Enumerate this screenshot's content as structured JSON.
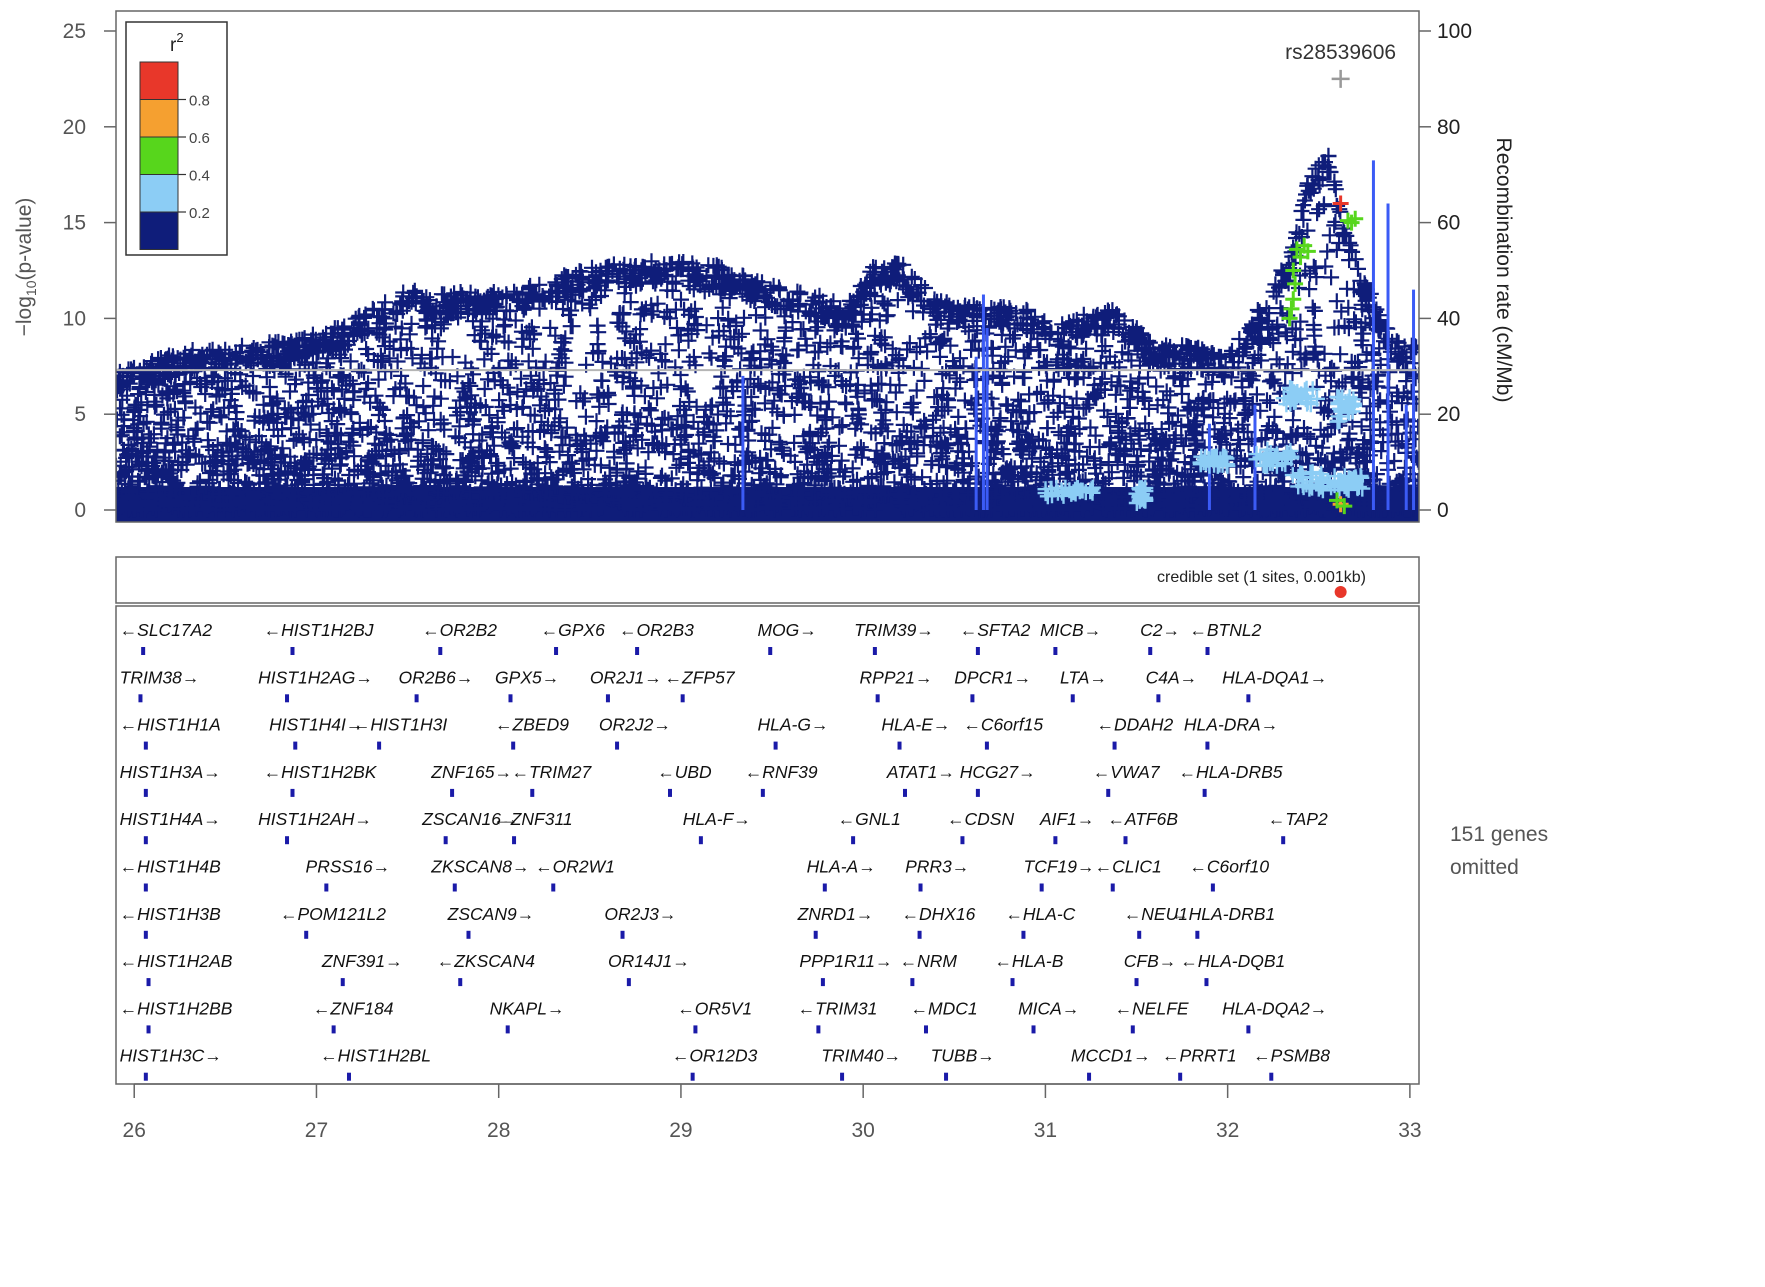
{
  "chart_data": {
    "type": "scatter",
    "plot_kind": "regional association plot",
    "ylabel": "-log10(p-value)",
    "y2label": "Recombination rate (cM/Mb)",
    "xlim": [
      25.9,
      33.05
    ],
    "ylim": [
      0,
      25
    ],
    "y2lim": [
      0,
      100
    ],
    "x_ticks": [
      26,
      27,
      28,
      29,
      30,
      31,
      32,
      33
    ],
    "y_ticks": [
      0,
      5,
      10,
      15,
      20,
      25
    ],
    "y2_ticks": [
      0,
      20,
      40,
      60,
      80,
      100
    ],
    "significance_line": 7.3,
    "legend": {
      "title": "r",
      "title_sup": "2",
      "placement": "top-left",
      "labels": [
        "0.8",
        "0.6",
        "0.4",
        "0.2"
      ],
      "colors": [
        "#e8372a",
        "#f5a030",
        "#57d61c",
        "#8ccdf5",
        "#0f1d7a"
      ]
    },
    "lead_snp": {
      "label": "rs28539606",
      "x": 32.62,
      "y": 22.5,
      "color": "#999999"
    },
    "profile": [
      [
        25.9,
        7.2
      ],
      [
        26.1,
        7.8
      ],
      [
        26.3,
        8.4
      ],
      [
        26.6,
        8.6
      ],
      [
        26.9,
        9.0
      ],
      [
        27.1,
        9.5
      ],
      [
        27.3,
        10.5
      ],
      [
        27.5,
        11.5
      ],
      [
        27.7,
        11.4
      ],
      [
        28.0,
        11.4
      ],
      [
        28.2,
        11.8
      ],
      [
        28.4,
        12.4
      ],
      [
        28.6,
        12.9
      ],
      [
        28.8,
        13.0
      ],
      [
        29.0,
        13.0
      ],
      [
        29.2,
        12.8
      ],
      [
        29.4,
        12.0
      ],
      [
        29.6,
        11.5
      ],
      [
        29.8,
        11.2
      ],
      [
        29.9,
        10.6
      ],
      [
        30.05,
        12.8
      ],
      [
        30.2,
        13.0
      ],
      [
        30.35,
        11.5
      ],
      [
        30.5,
        10.8
      ],
      [
        30.7,
        10.7
      ],
      [
        30.9,
        10.5
      ],
      [
        31.05,
        9.5
      ],
      [
        31.2,
        10.2
      ],
      [
        31.4,
        10.5
      ],
      [
        31.6,
        8.6
      ],
      [
        31.8,
        8.6
      ],
      [
        32.0,
        8.0
      ],
      [
        32.2,
        11.0
      ],
      [
        32.35,
        13.5
      ],
      [
        32.45,
        17.5
      ],
      [
        32.55,
        18.8
      ],
      [
        32.65,
        14.5
      ],
      [
        32.75,
        12.0
      ],
      [
        32.9,
        9.0
      ],
      [
        33.05,
        8.5
      ]
    ],
    "high_r2_points": [
      {
        "x": 32.62,
        "y": 16.0,
        "r2_bin": "0.8"
      },
      {
        "x": 32.62,
        "y": 0.3,
        "r2_bin": "0.6"
      },
      {
        "x": 32.38,
        "y": 13.6,
        "r2_bin": "0.4"
      },
      {
        "x": 32.4,
        "y": 13.2,
        "r2_bin": "0.4"
      },
      {
        "x": 32.42,
        "y": 13.8,
        "r2_bin": "0.4"
      },
      {
        "x": 32.44,
        "y": 13.5,
        "r2_bin": "0.4"
      },
      {
        "x": 32.36,
        "y": 12.5,
        "r2_bin": "0.4"
      },
      {
        "x": 32.37,
        "y": 11.8,
        "r2_bin": "0.4"
      },
      {
        "x": 32.36,
        "y": 11.0,
        "r2_bin": "0.4"
      },
      {
        "x": 32.35,
        "y": 10.5,
        "r2_bin": "0.4"
      },
      {
        "x": 32.34,
        "y": 10.0,
        "r2_bin": "0.4"
      },
      {
        "x": 32.66,
        "y": 15.1,
        "r2_bin": "0.4"
      },
      {
        "x": 32.68,
        "y": 15.0,
        "r2_bin": "0.4"
      },
      {
        "x": 32.7,
        "y": 15.2,
        "r2_bin": "0.4"
      },
      {
        "x": 32.6,
        "y": 0.5,
        "r2_bin": "0.4"
      },
      {
        "x": 32.64,
        "y": 0.2,
        "r2_bin": "0.4"
      }
    ],
    "light_blue_regions": [
      {
        "x_from": 31.0,
        "x_to": 31.3,
        "y_from": 0.7,
        "y_to": 1.2
      },
      {
        "x_from": 31.5,
        "x_to": 31.55,
        "y_from": 0.3,
        "y_to": 1.2
      },
      {
        "x_from": 31.85,
        "x_to": 32.0,
        "y_from": 2.3,
        "y_to": 2.8
      },
      {
        "x_from": 32.15,
        "x_to": 32.35,
        "y_from": 2.3,
        "y_to": 3.2
      },
      {
        "x_from": 32.35,
        "x_to": 32.55,
        "y_from": 1.0,
        "y_to": 2.0
      },
      {
        "x_from": 32.55,
        "x_to": 32.75,
        "y_from": 1.0,
        "y_to": 1.8
      },
      {
        "x_from": 32.6,
        "x_to": 32.7,
        "y_from": 4.5,
        "y_to": 6.0
      },
      {
        "x_from": 32.3,
        "x_to": 32.5,
        "y_from": 5.5,
        "y_to": 6.5
      }
    ],
    "recombination_spikes": [
      {
        "x": 29.34,
        "rate": 28
      },
      {
        "x": 30.62,
        "rate": 32
      },
      {
        "x": 30.68,
        "rate": 38
      },
      {
        "x": 30.66,
        "rate": 45
      },
      {
        "x": 32.8,
        "rate": 73
      },
      {
        "x": 32.88,
        "rate": 64
      },
      {
        "x": 33.02,
        "rate": 46
      },
      {
        "x": 32.98,
        "rate": 22
      },
      {
        "x": 32.15,
        "rate": 22
      },
      {
        "x": 31.9,
        "rate": 18
      }
    ],
    "credible_set": {
      "label": "credible set (1 sites, 0.001kb)",
      "x": 32.62,
      "color": "#e8372a"
    },
    "genes_omitted_line1": "151 genes",
    "genes_omitted_line2": "omitted",
    "gene_rows": [
      [
        [
          "SLC17A2",
          "l",
          25.92
        ],
        [
          "HIST1H2BJ",
          "l",
          26.71
        ],
        [
          "OR2B2",
          "l",
          27.58
        ],
        [
          "GPX6",
          "l",
          28.23
        ],
        [
          "OR2B3",
          "l",
          28.66
        ],
        [
          "MOG",
          "r",
          29.42
        ],
        [
          "TRIM39",
          "r",
          29.95
        ],
        [
          "SFTA2",
          "l",
          30.53
        ],
        [
          "MICB",
          "r",
          30.97
        ],
        [
          "C2",
          "r",
          31.52
        ],
        [
          "BTNL2",
          "l",
          31.79
        ]
      ],
      [
        [
          "TRIM38",
          "r",
          25.92
        ],
        [
          "HIST1H2AG",
          "r",
          26.68
        ],
        [
          "OR2B6",
          "r",
          27.45
        ],
        [
          "GPX5",
          "r",
          27.98
        ],
        [
          "OR2J1",
          "r",
          28.5
        ],
        [
          "ZFP57",
          "l",
          28.91
        ],
        [
          "RPP21",
          "r",
          29.98
        ],
        [
          "DPCR1",
          "r",
          30.5
        ],
        [
          "LTA",
          "r",
          31.08
        ],
        [
          "C4A",
          "r",
          31.55
        ],
        [
          "HLA-DQA1",
          "r",
          31.97
        ]
      ],
      [
        [
          "HIST1H1A",
          "l",
          25.92
        ],
        [
          "HIST1H4I",
          "r",
          26.74
        ],
        [
          "HIST1H3I",
          "l",
          27.2
        ],
        [
          "ZBED9",
          "l",
          27.98
        ],
        [
          "OR2J2",
          "r",
          28.55
        ],
        [
          "HLA-G",
          "r",
          29.42
        ],
        [
          "HLA-E",
          "r",
          30.1
        ],
        [
          "C6orf15",
          "l",
          30.55
        ],
        [
          "DDAH2",
          "l",
          31.28
        ],
        [
          "HLA-DRA",
          "r",
          31.76
        ]
      ],
      [
        [
          "HIST1H3A",
          "r",
          25.92
        ],
        [
          "HIST1H2BK",
          "l",
          26.71
        ],
        [
          "ZNF165",
          "r",
          27.63
        ],
        [
          "TRIM27",
          "l",
          28.07
        ],
        [
          "UBD",
          "l",
          28.87
        ],
        [
          "RNF39",
          "l",
          29.35
        ],
        [
          "ATAT1",
          "r",
          30.13
        ],
        [
          "HCG27",
          "r",
          30.53
        ],
        [
          "VWA7",
          "l",
          31.26
        ],
        [
          "HLA-DRB5",
          "l",
          31.73
        ]
      ],
      [
        [
          "HIST1H4A",
          "r",
          25.92
        ],
        [
          "HIST1H2AH",
          "r",
          26.68
        ],
        [
          "ZSCAN16",
          "r",
          27.58
        ],
        [
          "ZNF311",
          "l",
          27.97
        ],
        [
          "HLA-F",
          "r",
          29.01
        ],
        [
          "GNL1",
          "l",
          29.86
        ],
        [
          "CDSN",
          "l",
          30.46
        ],
        [
          "AIF1",
          "r",
          30.97
        ],
        [
          "ATF6B",
          "l",
          31.34
        ],
        [
          "TAP2",
          "l",
          32.22
        ]
      ],
      [
        [
          "HIST1H4B",
          "l",
          25.92
        ],
        [
          "PRSS16",
          "r",
          26.94
        ],
        [
          "ZKSCAN8",
          "r",
          27.63
        ],
        [
          "OR2W1",
          "l",
          28.2
        ],
        [
          "HLA-A",
          "r",
          29.69
        ],
        [
          "PRR3",
          "r",
          30.23
        ],
        [
          "TCF19",
          "r",
          30.88
        ],
        [
          "CLIC1",
          "l",
          31.27
        ],
        [
          "C6orf10",
          "l",
          31.79
        ]
      ],
      [
        [
          "HIST1H3B",
          "l",
          25.92
        ],
        [
          "POM121L2",
          "l",
          26.8
        ],
        [
          "ZSCAN9",
          "r",
          27.72
        ],
        [
          "OR2J3",
          "r",
          28.58
        ],
        [
          "ZNRD1",
          "r",
          29.64
        ],
        [
          "DHX16",
          "l",
          30.21
        ],
        [
          "HLA-C",
          "l",
          30.78
        ],
        [
          "NEU1",
          "l",
          31.43
        ],
        [
          "HLA-DRB1",
          "l",
          31.69
        ]
      ],
      [
        [
          "HIST1H2AB",
          "l",
          25.92
        ],
        [
          "ZNF391",
          "r",
          27.03
        ],
        [
          "ZKSCAN4",
          "l",
          27.66
        ],
        [
          "OR14J1",
          "r",
          28.6
        ],
        [
          "PPP1R11",
          "r",
          29.65
        ],
        [
          "NRM",
          "l",
          30.2
        ],
        [
          "HLA-B",
          "l",
          30.72
        ],
        [
          "CFB",
          "r",
          31.43
        ],
        [
          "HLA-DQB1",
          "l",
          31.74
        ]
      ],
      [
        [
          "HIST1H2BB",
          "l",
          25.92
        ],
        [
          "ZNF184",
          "l",
          26.98
        ],
        [
          "NKAPL",
          "r",
          27.95
        ],
        [
          "OR5V1",
          "l",
          28.98
        ],
        [
          "TRIM31",
          "l",
          29.64
        ],
        [
          "MDC1",
          "l",
          30.26
        ],
        [
          "MICA",
          "r",
          30.85
        ],
        [
          "NELFE",
          "l",
          31.38
        ],
        [
          "HLA-DQA2",
          "r",
          31.97
        ]
      ],
      [
        [
          "HIST1H3C",
          "r",
          25.92
        ],
        [
          "HIST1H2BL",
          "l",
          27.02
        ],
        [
          "OR12D3",
          "l",
          28.95
        ],
        [
          "TRIM40",
          "r",
          29.77
        ],
        [
          "TUBB",
          "r",
          30.37
        ],
        [
          "MCCD1",
          "r",
          31.14
        ],
        [
          "PRRT1",
          "l",
          31.64
        ],
        [
          "PSMB8",
          "l",
          32.14
        ]
      ]
    ]
  }
}
